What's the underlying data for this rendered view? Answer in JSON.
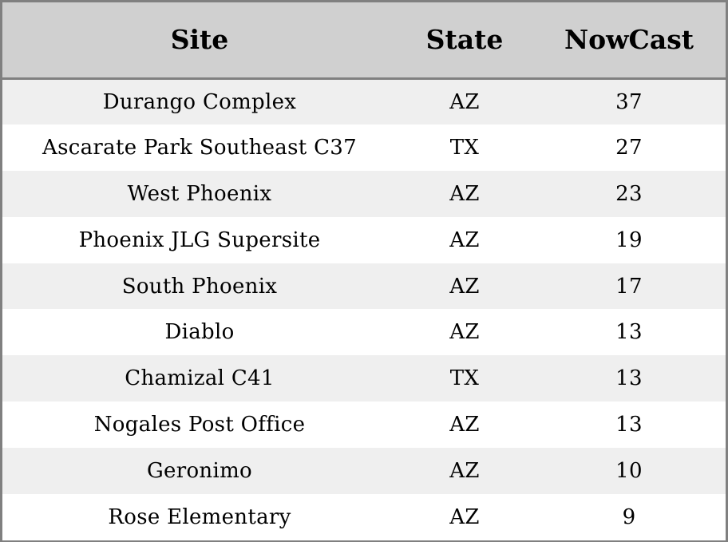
{
  "chart_data": {
    "type": "table",
    "columns": [
      "Site",
      "State",
      "NowCast"
    ],
    "rows": [
      {
        "site": "Durango Complex",
        "state": "AZ",
        "nowcast": "37"
      },
      {
        "site": "Ascarate Park Southeast C37",
        "state": "TX",
        "nowcast": "27"
      },
      {
        "site": "West Phoenix",
        "state": "AZ",
        "nowcast": "23"
      },
      {
        "site": "Phoenix JLG Supersite",
        "state": "AZ",
        "nowcast": "19"
      },
      {
        "site": "South Phoenix",
        "state": "AZ",
        "nowcast": "17"
      },
      {
        "site": "Diablo",
        "state": "AZ",
        "nowcast": "13"
      },
      {
        "site": "Chamizal C41",
        "state": "TX",
        "nowcast": "13"
      },
      {
        "site": "Nogales Post Office",
        "state": "AZ",
        "nowcast": "13"
      },
      {
        "site": "Geronimo",
        "state": "AZ",
        "nowcast": "10"
      },
      {
        "site": "Rose Elementary",
        "state": "AZ",
        "nowcast": "9"
      }
    ]
  },
  "colors": {
    "header_bg": "#d0d0d0",
    "row_alt_bg": "#efefef",
    "row_bg": "#ffffff",
    "border": "#808080"
  }
}
